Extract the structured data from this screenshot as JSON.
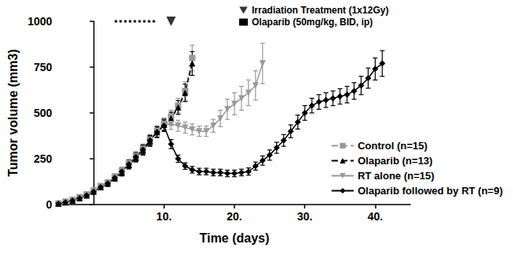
{
  "chart_data": {
    "type": "line",
    "x_label": "Time (days)",
    "y_label": "Tumor volume (mm3)",
    "xlim": [
      -5,
      45
    ],
    "xticks": [
      {
        "value": 10,
        "label": "10."
      },
      {
        "value": 20,
        "label": "20."
      },
      {
        "value": 30,
        "label": "30."
      },
      {
        "value": 40,
        "label": "40."
      }
    ],
    "ylim": [
      0,
      1000
    ],
    "yticks": [
      0,
      250,
      500,
      750,
      1000
    ],
    "grid": false,
    "legend": "lower right",
    "series": [
      {
        "name": "Control (n=15)",
        "color": "#999999",
        "marker": "square",
        "line_style": "dashed",
        "x": [
          -5,
          -4,
          -3,
          -2,
          -1,
          0,
          1,
          2,
          3,
          4,
          5,
          6,
          7,
          8,
          9,
          10,
          11,
          12,
          13,
          14
        ],
        "values": [
          5,
          15,
          25,
          40,
          55,
          75,
          100,
          120,
          150,
          180,
          220,
          260,
          300,
          350,
          400,
          440,
          480,
          540,
          620,
          800
        ],
        "errors": [
          3,
          5,
          6,
          8,
          10,
          12,
          14,
          15,
          18,
          20,
          22,
          24,
          26,
          28,
          30,
          32,
          35,
          40,
          50,
          70
        ]
      },
      {
        "name": "Olaparib (n=13)",
        "color": "#000000",
        "marker": "triangle",
        "line_style": "dashed",
        "x": [
          -5,
          -4,
          -3,
          -2,
          -1,
          0,
          1,
          2,
          3,
          4,
          5,
          6,
          7,
          8,
          9,
          10,
          11,
          12,
          13,
          14
        ],
        "values": [
          5,
          12,
          22,
          35,
          50,
          70,
          95,
          115,
          145,
          175,
          215,
          255,
          295,
          345,
          395,
          435,
          470,
          530,
          610,
          770
        ],
        "errors": [
          3,
          4,
          5,
          7,
          9,
          11,
          13,
          15,
          17,
          19,
          21,
          23,
          25,
          27,
          29,
          31,
          34,
          38,
          48,
          65
        ]
      },
      {
        "name": "RT alone (n=15)",
        "color": "#999999",
        "marker": "triangle-down",
        "line_style": "solid",
        "x": [
          -5,
          -4,
          -3,
          -2,
          -1,
          0,
          1,
          2,
          3,
          4,
          5,
          6,
          7,
          8,
          9,
          10,
          11,
          12,
          13,
          14,
          15,
          16,
          17,
          18,
          19,
          20,
          21,
          22,
          23,
          24
        ],
        "values": [
          5,
          15,
          25,
          40,
          55,
          75,
          100,
          120,
          150,
          185,
          225,
          265,
          305,
          355,
          400,
          440,
          440,
          430,
          420,
          410,
          400,
          400,
          430,
          470,
          520,
          550,
          580,
          610,
          650,
          770
        ],
        "errors": [
          3,
          5,
          6,
          8,
          10,
          12,
          14,
          15,
          18,
          20,
          22,
          24,
          26,
          28,
          30,
          32,
          30,
          30,
          30,
          30,
          28,
          28,
          35,
          45,
          55,
          60,
          65,
          70,
          80,
          110
        ]
      },
      {
        "name": "Olaparib followed by RT (n=9)",
        "color": "#000000",
        "marker": "diamond",
        "line_style": "solid",
        "x": [
          -5,
          -4,
          -3,
          -2,
          -1,
          0,
          1,
          2,
          3,
          4,
          5,
          6,
          7,
          8,
          9,
          10,
          11,
          12,
          13,
          14,
          15,
          16,
          17,
          18,
          19,
          20,
          21,
          22,
          23,
          24,
          25,
          26,
          27,
          28,
          29,
          30,
          31,
          32,
          33,
          34,
          35,
          36,
          37,
          38,
          39,
          40,
          41
        ],
        "values": [
          5,
          12,
          22,
          35,
          50,
          70,
          95,
          115,
          145,
          180,
          220,
          260,
          300,
          350,
          395,
          430,
          330,
          250,
          210,
          190,
          180,
          180,
          175,
          175,
          170,
          170,
          175,
          180,
          210,
          240,
          270,
          310,
          350,
          400,
          450,
          500,
          540,
          560,
          570,
          580,
          590,
          600,
          620,
          650,
          690,
          740,
          770
        ],
        "errors": [
          3,
          4,
          5,
          7,
          9,
          11,
          13,
          15,
          17,
          19,
          21,
          23,
          25,
          27,
          29,
          31,
          25,
          20,
          18,
          18,
          18,
          18,
          18,
          18,
          18,
          18,
          18,
          20,
          22,
          25,
          28,
          30,
          32,
          35,
          38,
          40,
          40,
          40,
          40,
          40,
          42,
          45,
          45,
          50,
          55,
          60,
          70
        ]
      }
    ],
    "annotations": [
      {
        "text": "Irradiation Treatment (1x12Gy)",
        "marker": "triangle-down",
        "color": "#000000",
        "x": 11,
        "y": 1000
      },
      {
        "text": "Olaparib (50mg/kg, BID, ip)",
        "marker": "square",
        "color": "#000000",
        "line_style": "dotted",
        "x": [
          3,
          9
        ],
        "y": 1000
      }
    ]
  }
}
